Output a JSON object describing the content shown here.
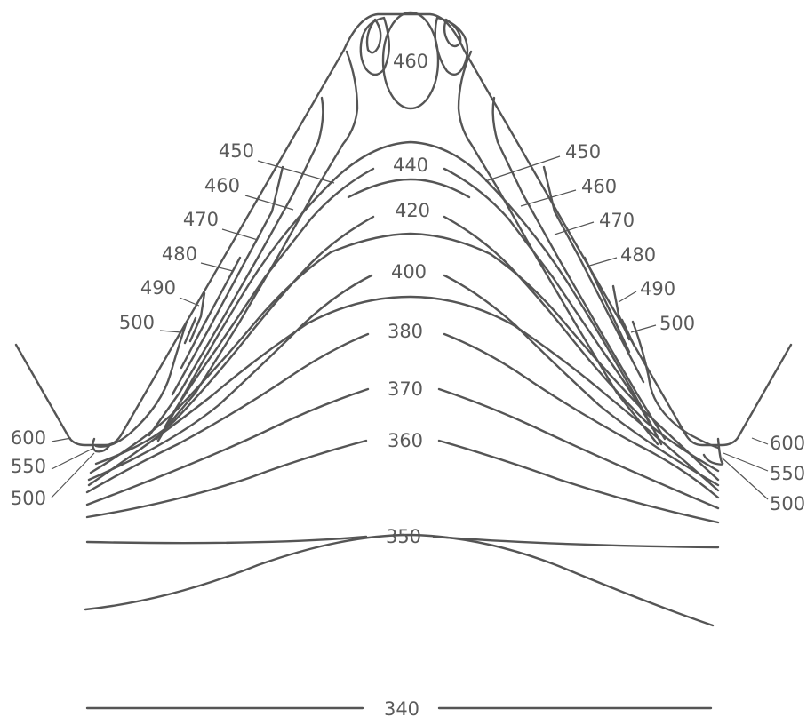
{
  "colors": {
    "line": "#555555",
    "text": "#5a5a5a",
    "background": "#ffffff"
  },
  "labels": {
    "core_460": "460",
    "c440": "440",
    "c420": "420",
    "c400": "400",
    "c380": "380",
    "c370": "370",
    "c360": "360",
    "c350": "350",
    "c340": "340",
    "left": [
      "450",
      "460",
      "470",
      "480",
      "490",
      "500"
    ],
    "right": [
      "450",
      "460",
      "470",
      "480",
      "490",
      "500"
    ],
    "left_base": [
      "600",
      "550",
      "500"
    ],
    "right_base": [
      "600",
      "550",
      "500"
    ]
  }
}
